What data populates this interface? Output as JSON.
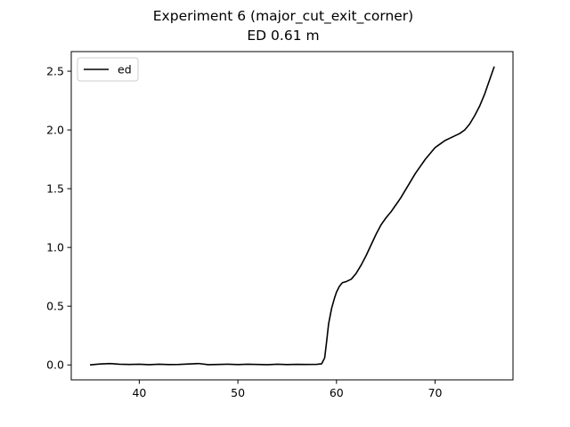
{
  "chart_data": {
    "type": "line",
    "title": "Experiment 6 (major_cut_exit_corner)",
    "subtitle": "ED 0.61 m",
    "xlabel": "",
    "ylabel": "",
    "xlim": [
      33.1,
      77.9
    ],
    "ylim": [
      -0.127,
      2.667
    ],
    "xticks": [
      40,
      50,
      60,
      70
    ],
    "xtick_labels": [
      "40",
      "50",
      "60",
      "70"
    ],
    "yticks": [
      0.0,
      0.5,
      1.0,
      1.5,
      2.0,
      2.5
    ],
    "ytick_labels": [
      "0.0",
      "0.5",
      "1.0",
      "1.5",
      "2.0",
      "2.5"
    ],
    "grid": false,
    "legend": "top-left",
    "series": [
      {
        "name": "ed",
        "color": "#000000",
        "x": [
          35,
          36,
          37,
          38,
          39,
          40,
          41,
          42,
          43,
          44,
          45,
          46,
          47,
          48,
          49,
          50,
          51,
          52,
          53,
          54,
          55,
          56,
          57,
          58,
          58.5,
          58.8,
          59.0,
          59.2,
          59.5,
          59.8,
          60.0,
          60.3,
          60.6,
          61.0,
          61.5,
          62.0,
          62.5,
          63.0,
          63.5,
          64.0,
          64.5,
          65.0,
          65.5,
          66.0,
          66.5,
          67.0,
          67.5,
          68.0,
          68.5,
          69.0,
          69.5,
          70.0,
          70.5,
          71.0,
          71.5,
          72.0,
          72.5,
          73.0,
          73.5,
          74.0,
          74.5,
          75.0,
          75.5,
          76.0
        ],
        "y": [
          0.0,
          0.008,
          0.012,
          0.006,
          0.004,
          0.006,
          0.002,
          0.006,
          0.003,
          0.004,
          0.008,
          0.012,
          0.002,
          0.004,
          0.006,
          0.003,
          0.006,
          0.004,
          0.002,
          0.006,
          0.003,
          0.005,
          0.004,
          0.005,
          0.01,
          0.06,
          0.2,
          0.35,
          0.48,
          0.57,
          0.62,
          0.67,
          0.7,
          0.71,
          0.73,
          0.78,
          0.85,
          0.93,
          1.02,
          1.11,
          1.19,
          1.25,
          1.3,
          1.36,
          1.42,
          1.49,
          1.56,
          1.63,
          1.69,
          1.75,
          1.8,
          1.85,
          1.88,
          1.91,
          1.93,
          1.95,
          1.97,
          2.0,
          2.05,
          2.12,
          2.2,
          2.3,
          2.42,
          2.54
        ]
      }
    ]
  }
}
